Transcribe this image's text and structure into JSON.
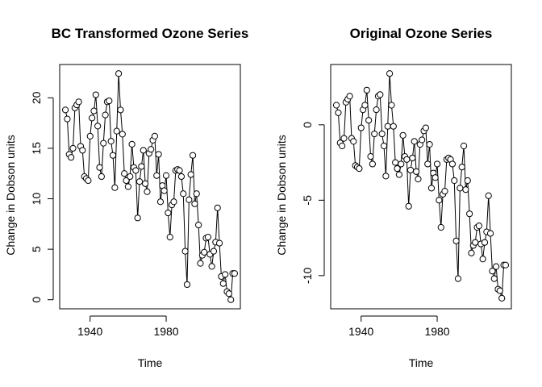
{
  "chart_data": [
    {
      "type": "line",
      "title": "BC Transformed Ozone Series",
      "xlabel": "Time",
      "ylabel": "Change in Dobson units",
      "xlim": [
        1924,
        2019
      ],
      "ylim": [
        -0.9,
        23.3
      ],
      "xticks": [
        "1940",
        "1980"
      ],
      "yticks": [
        "0",
        "5",
        "10",
        "15",
        "20"
      ],
      "grid": false,
      "markers": "open circles",
      "series": [
        {
          "x": [
            1927,
            1928,
            1929,
            1930,
            1931,
            1932,
            1933,
            1934,
            1935,
            1936,
            1937,
            1938,
            1939,
            1940,
            1941,
            1942,
            1943,
            1944,
            1945,
            1946,
            1947,
            1948,
            1949,
            1950,
            1951,
            1952,
            1953,
            1954,
            1955,
            1956,
            1957,
            1958,
            1959,
            1960,
            1961,
            1962,
            1963,
            1964,
            1965,
            1966,
            1967,
            1968,
            1969,
            1970,
            1971,
            1972,
            1973,
            1974,
            1975,
            1976,
            1977,
            1978,
            1979,
            1980,
            1981,
            1982,
            1983,
            1984,
            1985,
            1986,
            1987,
            1988,
            1989,
            1990,
            1991,
            1992,
            1993,
            1994,
            1995,
            1996,
            1997,
            1998,
            1999,
            2000,
            2001,
            2002,
            2003,
            2004,
            2005,
            2006,
            2007,
            2008,
            2009,
            2010,
            2011,
            2012,
            2013,
            2014,
            2015,
            2016
          ],
          "y": [
            18.8,
            17.9,
            14.4,
            14.1,
            15.0,
            19.0,
            19.3,
            19.6,
            15.2,
            14.8,
            12.2,
            12.0,
            11.8,
            16.2,
            18.0,
            18.7,
            20.3,
            17.2,
            13.1,
            12.2,
            15.5,
            18.3,
            19.6,
            19.7,
            15.7,
            14.3,
            11.1,
            16.7,
            22.4,
            18.8,
            16.4,
            12.5,
            11.8,
            11.2,
            12.2,
            15.4,
            13.1,
            12.8,
            8.1,
            11.7,
            13.2,
            14.8,
            11.5,
            10.7,
            14.5,
            14.9,
            15.8,
            16.2,
            12.3,
            14.4,
            9.7,
            11.3,
            10.8,
            12.3,
            8.6,
            6.2,
            9.4,
            9.7,
            12.8,
            12.9,
            12.8,
            12.2,
            10.5,
            4.8,
            1.5,
            9.9,
            12.4,
            14.3,
            9.5,
            10.5,
            7.4,
            3.6,
            4.4,
            4.7,
            6.1,
            6.2,
            4.5,
            3.3,
            4.8,
            5.7,
            9.1,
            5.6,
            2.3,
            1.6,
            2.5,
            0.8,
            0.6,
            0.0,
            2.6,
            2.6
          ]
        }
      ]
    },
    {
      "type": "line",
      "title": "Original Ozone Series",
      "xlabel": "Time",
      "ylabel": "Change in Dobson units",
      "xlim": [
        1924,
        2019
      ],
      "ylim": [
        -12.2,
        4.0
      ],
      "xticks": [
        "1940",
        "1980"
      ],
      "yticks": [
        "0",
        "-5",
        "-10"
      ],
      "grid": false,
      "markers": "open circles",
      "series": [
        {
          "x": [
            1927,
            1928,
            1929,
            1930,
            1931,
            1932,
            1933,
            1934,
            1935,
            1936,
            1937,
            1938,
            1939,
            1940,
            1941,
            1942,
            1943,
            1944,
            1945,
            1946,
            1947,
            1948,
            1949,
            1950,
            1951,
            1952,
            1953,
            1954,
            1955,
            1956,
            1957,
            1958,
            1959,
            1960,
            1961,
            1962,
            1963,
            1964,
            1965,
            1966,
            1967,
            1968,
            1969,
            1970,
            1971,
            1972,
            1973,
            1974,
            1975,
            1976,
            1977,
            1978,
            1979,
            1980,
            1981,
            1982,
            1983,
            1984,
            1985,
            1986,
            1987,
            1988,
            1989,
            1990,
            1991,
            1992,
            1993,
            1994,
            1995,
            1996,
            1997,
            1998,
            1999,
            2000,
            2001,
            2002,
            2003,
            2004,
            2005,
            2006,
            2007,
            2008,
            2009,
            2010,
            2011,
            2012,
            2013,
            2014,
            2015,
            2016
          ],
          "y": [
            1.3,
            0.8,
            -1.2,
            -1.4,
            -0.9,
            1.5,
            1.7,
            1.9,
            -0.9,
            -1.1,
            -2.7,
            -2.8,
            -2.9,
            -0.2,
            1.0,
            1.3,
            2.3,
            0.3,
            -2.1,
            -2.6,
            -0.6,
            1.0,
            1.9,
            2.0,
            -0.6,
            -1.4,
            -3.4,
            -0.1,
            3.4,
            1.3,
            -0.1,
            -2.5,
            -2.9,
            -3.3,
            -2.6,
            -0.7,
            -2.1,
            -2.3,
            -5.4,
            -3.0,
            -2.2,
            -1.1,
            -3.1,
            -3.6,
            -1.3,
            -1.0,
            -0.4,
            -0.2,
            -2.6,
            -1.3,
            -4.2,
            -3.2,
            -3.5,
            -2.6,
            -5.0,
            -6.8,
            -4.6,
            -4.4,
            -2.3,
            -2.2,
            -2.3,
            -2.6,
            -3.7,
            -7.7,
            -10.2,
            -4.2,
            -2.8,
            -1.4,
            -4.3,
            -3.7,
            -5.9,
            -8.5,
            -8.0,
            -7.8,
            -6.8,
            -6.7,
            -7.9,
            -8.9,
            -7.8,
            -7.1,
            -4.7,
            -7.2,
            -9.7,
            -10.2,
            -9.4,
            -10.9,
            -11.0,
            -11.5,
            -9.3,
            -9.3
          ]
        }
      ]
    }
  ]
}
